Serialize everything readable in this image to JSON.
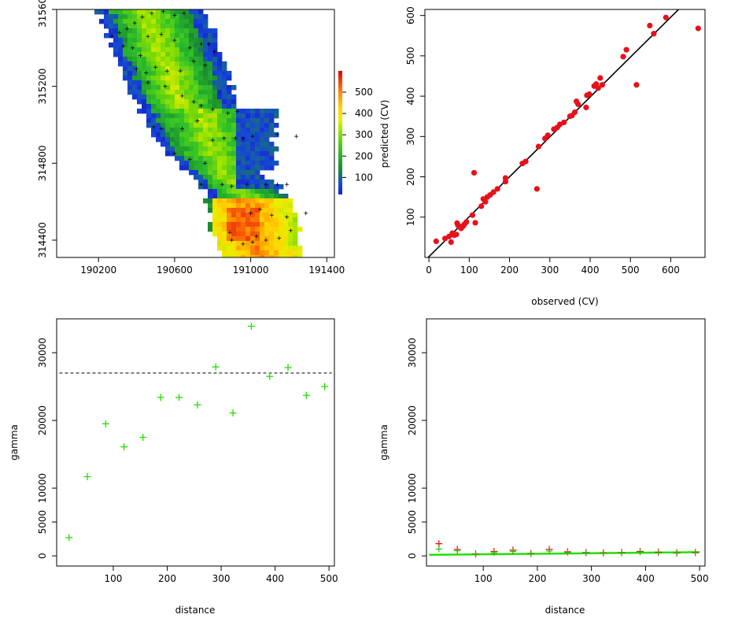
{
  "chart_data": [
    {
      "type": "heatmap",
      "xlabel": "",
      "ylabel": "",
      "x_ticks": [
        190200,
        190600,
        191000,
        191400
      ],
      "y_ticks": [
        314400,
        314800,
        315200,
        315600
      ],
      "y_tick_labels": [
        "314400",
        "314800",
        "315200",
        "315600"
      ],
      "xlim": [
        189980,
        191440
      ],
      "ylim": [
        314310,
        315600
      ],
      "colorbar": {
        "ticks": [
          100,
          200,
          300,
          400,
          500
        ],
        "range": [
          20,
          600
        ]
      },
      "samples": [
        [
          190270,
          315460
        ],
        [
          190310,
          315480
        ],
        [
          190350,
          315500
        ],
        [
          190390,
          315530
        ],
        [
          190430,
          315560
        ],
        [
          190480,
          315580
        ],
        [
          190540,
          315590
        ],
        [
          190600,
          315570
        ],
        [
          190650,
          315580
        ],
        [
          190330,
          315410
        ],
        [
          190380,
          315400
        ],
        [
          190420,
          315360
        ],
        [
          190460,
          315460
        ],
        [
          190530,
          315470
        ],
        [
          190600,
          315440
        ],
        [
          190680,
          315400
        ],
        [
          190740,
          315420
        ],
        [
          190780,
          315420
        ],
        [
          190810,
          315380
        ],
        [
          190400,
          315290
        ],
        [
          190450,
          315270
        ],
        [
          190500,
          315300
        ],
        [
          190560,
          315280
        ],
        [
          190630,
          315280
        ],
        [
          190700,
          315330
        ],
        [
          190760,
          315310
        ],
        [
          190460,
          315220
        ],
        [
          190550,
          315200
        ],
        [
          190640,
          315150
        ],
        [
          190700,
          315120
        ],
        [
          190740,
          315100
        ],
        [
          190800,
          315080
        ],
        [
          190880,
          315060
        ],
        [
          190930,
          315070
        ],
        [
          190490,
          314990
        ],
        [
          190530,
          314980
        ],
        [
          190640,
          314980
        ],
        [
          190720,
          315020
        ],
        [
          190800,
          314920
        ],
        [
          190860,
          314930
        ],
        [
          190920,
          314930
        ],
        [
          190960,
          314930
        ],
        [
          191010,
          314940
        ],
        [
          191140,
          314950
        ],
        [
          191240,
          314940
        ],
        [
          190600,
          314850
        ],
        [
          190680,
          314820
        ],
        [
          190760,
          314800
        ],
        [
          190740,
          314690
        ],
        [
          190850,
          314690
        ],
        [
          190900,
          314680
        ],
        [
          190980,
          314690
        ],
        [
          191080,
          314690
        ],
        [
          191140,
          314690
        ],
        [
          191190,
          314690
        ],
        [
          191000,
          314540
        ],
        [
          191050,
          314560
        ],
        [
          191110,
          314530
        ],
        [
          191190,
          314520
        ],
        [
          191290,
          314540
        ],
        [
          190890,
          314440
        ],
        [
          191030,
          314420
        ],
        [
          191150,
          314410
        ],
        [
          191210,
          314450
        ],
        [
          190900,
          314400
        ],
        [
          190960,
          314380
        ],
        [
          191010,
          314390
        ],
        [
          191080,
          314400
        ]
      ]
    },
    {
      "type": "scatter",
      "xlabel": "observed (CV)",
      "ylabel": "predicted (CV)",
      "xlim": [
        -10,
        685
      ],
      "ylim": [
        0,
        615
      ],
      "x_ticks": [
        0,
        100,
        200,
        300,
        400,
        500,
        600
      ],
      "y_ticks": [
        100,
        200,
        300,
        400,
        500,
        600
      ],
      "points": [
        [
          18,
          40
        ],
        [
          40,
          47
        ],
        [
          50,
          52
        ],
        [
          55,
          38
        ],
        [
          58,
          60
        ],
        [
          63,
          55
        ],
        [
          68,
          57
        ],
        [
          70,
          85
        ],
        [
          72,
          80
        ],
        [
          76,
          76
        ],
        [
          80,
          72
        ],
        [
          85,
          78
        ],
        [
          88,
          82
        ],
        [
          93,
          88
        ],
        [
          112,
          210
        ],
        [
          115,
          86
        ],
        [
          108,
          105
        ],
        [
          130,
          127
        ],
        [
          135,
          145
        ],
        [
          140,
          138
        ],
        [
          145,
          150
        ],
        [
          152,
          155
        ],
        [
          160,
          162
        ],
        [
          170,
          170
        ],
        [
          190,
          197
        ],
        [
          190,
          188
        ],
        [
          232,
          233
        ],
        [
          240,
          238
        ],
        [
          268,
          170
        ],
        [
          272,
          275
        ],
        [
          288,
          295
        ],
        [
          295,
          303
        ],
        [
          310,
          318
        ],
        [
          318,
          322
        ],
        [
          325,
          330
        ],
        [
          335,
          335
        ],
        [
          350,
          350
        ],
        [
          355,
          352
        ],
        [
          362,
          360
        ],
        [
          366,
          387
        ],
        [
          370,
          380
        ],
        [
          390,
          372
        ],
        [
          392,
          402
        ],
        [
          398,
          405
        ],
        [
          410,
          425
        ],
        [
          415,
          430
        ],
        [
          420,
          420
        ],
        [
          425,
          445
        ],
        [
          430,
          428
        ],
        [
          482,
          498
        ],
        [
          490,
          515
        ],
        [
          515,
          428
        ],
        [
          548,
          575
        ],
        [
          558,
          555
        ],
        [
          588,
          595
        ],
        [
          668,
          568
        ]
      ],
      "line": [
        [
          -10,
          -8
        ],
        [
          685,
          680
        ]
      ]
    },
    {
      "type": "scatter",
      "xlabel": "distance",
      "ylabel": "gamma",
      "xlim": [
        -5,
        510
      ],
      "ylim": [
        -1500,
        35000
      ],
      "x_ticks": [
        100,
        200,
        300,
        400,
        500
      ],
      "y_ticks": [
        0,
        5000,
        10000,
        20000,
        30000
      ],
      "points": [
        [
          18,
          2700
        ],
        [
          52,
          11700
        ],
        [
          86,
          19500
        ],
        [
          120,
          16100
        ],
        [
          155,
          17500
        ],
        [
          188,
          23400
        ],
        [
          222,
          23400
        ],
        [
          256,
          22300
        ],
        [
          290,
          27900
        ],
        [
          322,
          21100
        ],
        [
          356,
          33900
        ],
        [
          390,
          26500
        ],
        [
          424,
          27800
        ],
        [
          458,
          23700
        ],
        [
          492,
          25000
        ]
      ],
      "sill": 27000
    },
    {
      "type": "scatter",
      "xlabel": "distance",
      "ylabel": "gamma",
      "xlim": [
        -5,
        510
      ],
      "ylim": [
        -1500,
        35000
      ],
      "x_ticks": [
        100,
        200,
        300,
        400,
        500
      ],
      "y_ticks": [
        0,
        5000,
        10000,
        20000,
        30000
      ],
      "red_points": [
        [
          18,
          1800
        ],
        [
          52,
          950
        ],
        [
          86,
          300
        ],
        [
          120,
          650
        ],
        [
          155,
          850
        ],
        [
          188,
          350
        ],
        [
          222,
          950
        ],
        [
          256,
          600
        ],
        [
          290,
          500
        ],
        [
          322,
          450
        ],
        [
          356,
          500
        ],
        [
          390,
          650
        ],
        [
          424,
          550
        ],
        [
          458,
          450
        ],
        [
          492,
          500
        ]
      ],
      "green_points": [
        [
          18,
          1000
        ],
        [
          52,
          750
        ],
        [
          86,
          300
        ],
        [
          120,
          450
        ],
        [
          155,
          650
        ],
        [
          188,
          300
        ],
        [
          222,
          700
        ],
        [
          256,
          500
        ],
        [
          290,
          450
        ],
        [
          322,
          400
        ],
        [
          356,
          450
        ],
        [
          390,
          550
        ],
        [
          424,
          450
        ],
        [
          458,
          400
        ],
        [
          492,
          450
        ]
      ],
      "fit_line": [
        [
          0,
          150
        ],
        [
          500,
          550
        ]
      ]
    }
  ]
}
